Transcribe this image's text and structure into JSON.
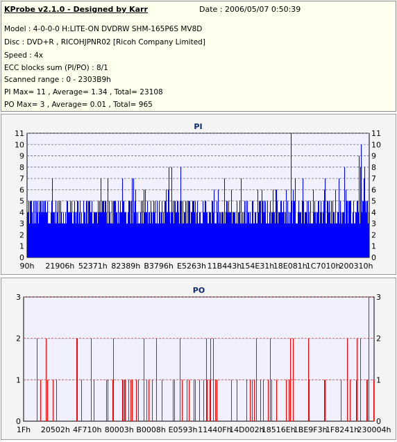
{
  "header": {
    "title": "KProbe v2.1.0 - Designed by Karr",
    "date": "Date : 2006/05/07 0:50:39",
    "lines": [
      "Model : 4-0-0-0 H:LITE-ON DVDRW SHM-165P6S MV8D",
      "Disc : DVD+R , RICOHJPNR02 [Ricoh Company Limited]",
      "Speed : 4x",
      "ECC blocks sum (PI/PO) : 8/1",
      "Scanned range : 0 - 2303B9h",
      "PI Max= 11 , Average= 1.34 , Total= 23108",
      "PO Max= 3 , Average= 0.01 , Total= 965"
    ]
  },
  "chart_data": [
    {
      "type": "bar",
      "title": "PI",
      "ylim": [
        0,
        11
      ],
      "yticks": [
        "0",
        "1",
        "2",
        "3",
        "4",
        "5",
        "6",
        "7",
        "8",
        "9",
        "10",
        "11"
      ],
      "xtick_labels": [
        "90h",
        "21906h",
        "52371h",
        "82389h",
        "B3796h",
        "E5263h",
        "11B443h",
        "154E31h",
        "18E081h",
        "1C7010h",
        "200310h"
      ],
      "color": "#0000ff",
      "peak_values": [
        {
          "position": 0.77,
          "value": 11
        },
        {
          "position": 0.975,
          "value": 10
        },
        {
          "position": 0.97,
          "value": 9
        }
      ],
      "typical_range": [
        3,
        5
      ],
      "grid": true
    },
    {
      "type": "bar",
      "title": "PO",
      "ylim": [
        0,
        3
      ],
      "yticks": [
        "0",
        "1",
        "2",
        "3"
      ],
      "xtick_labels": [
        "1Fh",
        "20502h",
        "4F710h",
        "80003h",
        "B0008h",
        "E0593h",
        "11440Fh",
        "14D002h",
        "18516Eh",
        "1BE9F3h",
        "1F8241h",
        "230004h"
      ],
      "color": "#ff0000",
      "peak_values": [
        {
          "position": 0.985,
          "value": 3
        }
      ],
      "grid": true
    }
  ]
}
